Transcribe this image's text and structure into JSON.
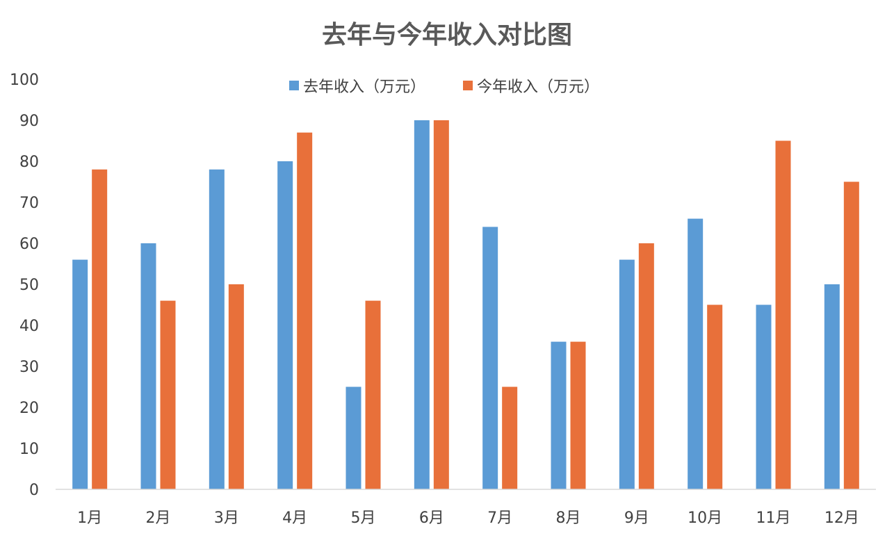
{
  "chart_data": {
    "type": "bar",
    "title": "去年与今年收入对比图",
    "xlabel": "",
    "ylabel": "",
    "categories": [
      "1月",
      "2月",
      "3月",
      "4月",
      "5月",
      "6月",
      "7月",
      "8月",
      "9月",
      "10月",
      "11月",
      "12月"
    ],
    "series": [
      {
        "name": "去年收入（万元）",
        "color": "#5B9BD5",
        "values": [
          56,
          60,
          78,
          80,
          25,
          90,
          64,
          36,
          56,
          66,
          45,
          50
        ]
      },
      {
        "name": "今年收入（万元）",
        "color": "#E8703A",
        "values": [
          78,
          46,
          50,
          87,
          46,
          90,
          25,
          36,
          60,
          45,
          85,
          75
        ]
      }
    ],
    "ylim": [
      0,
      100
    ],
    "yticks": [
      "0",
      "10",
      "20",
      "30",
      "40",
      "50",
      "60",
      "70",
      "80",
      "90",
      "100"
    ],
    "grid": false,
    "legend_position": "top-center"
  }
}
